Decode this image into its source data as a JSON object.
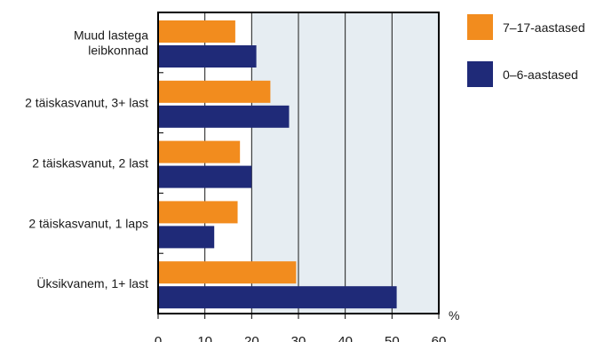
{
  "chart_data": {
    "type": "bar",
    "orientation": "horizontal",
    "categories": [
      [
        "Muud lastega",
        "leibkonnad"
      ],
      [
        "2 täiskasvanut, 3+ last"
      ],
      [
        "2 täiskasvanut, 2 last"
      ],
      [
        "2 täiskasvanut, 1 laps"
      ],
      [
        "Üksikvanem, 1+ last"
      ]
    ],
    "series": [
      {
        "name": "7–17-aastased",
        "color": "#F28C1E",
        "values": [
          16.5,
          24,
          17.5,
          17,
          29.5
        ]
      },
      {
        "name": "0–6-aastased",
        "color": "#1F2A78",
        "values": [
          21,
          28,
          20,
          12,
          51
        ]
      }
    ],
    "xlim": [
      0,
      60
    ],
    "xticks": [
      0,
      10,
      20,
      30,
      40,
      50,
      60
    ],
    "unit": "%",
    "grid": true,
    "legend_position": "right",
    "colors": {
      "plot_background": "#E6EDF2",
      "grid": "#1a1a1a",
      "frame": "#000000"
    }
  }
}
